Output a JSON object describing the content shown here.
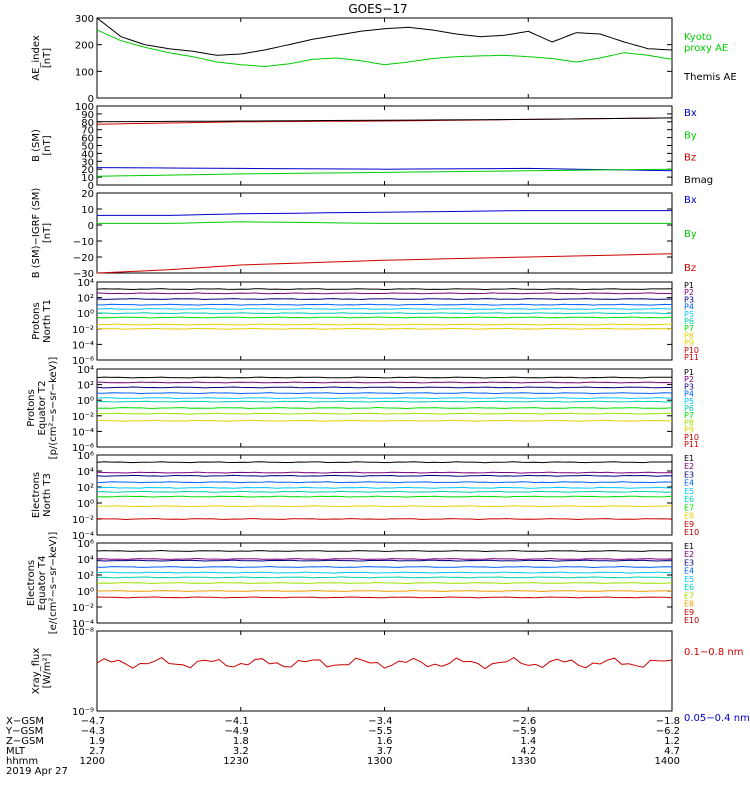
{
  "title": "GOES−17",
  "colors": {
    "black": "#000000",
    "green": "#00cc00",
    "blue": "#0000cc",
    "red": "#cc0000",
    "navy": "#000080",
    "purple": "#800080",
    "indigo": "#3a00c0",
    "royal": "#0060ff",
    "cyan": "#00c8ff",
    "teal": "#00d0b0",
    "lime": "#00e000",
    "yellowgreen": "#a0e000",
    "gold": "#e8d000",
    "orange": "#f0a000",
    "darkred": "#b00000"
  },
  "chart_data": [
    {
      "type": "line",
      "ylabel": "AE_index\n[nT]",
      "ylim": [
        0,
        300
      ],
      "yticks": [
        "0",
        "100",
        "200",
        "300"
      ],
      "x": [
        0,
        5,
        10,
        15,
        20,
        25,
        30,
        35,
        40,
        45,
        50,
        55,
        60,
        65,
        70,
        75,
        80,
        85,
        90,
        95,
        100,
        105,
        110,
        115,
        120
      ],
      "series": [
        {
          "name": "Kyoto\nproxy AE",
          "color": "green",
          "values": [
            255,
            215,
            190,
            170,
            155,
            135,
            125,
            118,
            128,
            145,
            150,
            140,
            125,
            135,
            148,
            155,
            158,
            160,
            155,
            148,
            135,
            150,
            170,
            160,
            145
          ]
        },
        {
          "name": "Themis AE",
          "color": "black",
          "values": [
            300,
            230,
            200,
            185,
            175,
            160,
            165,
            180,
            200,
            220,
            235,
            250,
            260,
            265,
            255,
            240,
            230,
            235,
            250,
            210,
            245,
            240,
            210,
            185,
            180
          ]
        }
      ]
    },
    {
      "type": "line",
      "ylabel": "B (SM)\n[nT]",
      "ylim": [
        0,
        100
      ],
      "yticks": [
        "0",
        "10",
        "20",
        "30",
        "40",
        "50",
        "60",
        "70",
        "80",
        "90",
        "100"
      ],
      "x": [
        0,
        30,
        60,
        90,
        120
      ],
      "series": [
        {
          "name": "Bx",
          "color": "blue",
          "values": [
            22,
            21,
            20,
            21,
            18
          ]
        },
        {
          "name": "By",
          "color": "green",
          "values": [
            11,
            14,
            16,
            18,
            20
          ]
        },
        {
          "name": "Bz",
          "color": "red",
          "values": [
            77,
            80,
            81,
            83,
            85
          ]
        },
        {
          "name": "Bmag",
          "color": "black",
          "values": [
            80,
            81,
            82,
            83,
            85
          ]
        }
      ]
    },
    {
      "type": "line",
      "ylabel": "B (SM)−IGRF (SM)\n[nT]",
      "ylim": [
        -30,
        20
      ],
      "yticks": [
        "−30",
        "−20",
        "−10",
        "0",
        "10",
        "20"
      ],
      "x": [
        0,
        15,
        30,
        60,
        90,
        120
      ],
      "series": [
        {
          "name": "Bx",
          "color": "blue",
          "values": [
            6,
            6,
            7,
            8,
            9,
            9
          ]
        },
        {
          "name": "By",
          "color": "green",
          "values": [
            1,
            1,
            2,
            1,
            1,
            1
          ]
        },
        {
          "name": "Bz",
          "color": "red",
          "values": [
            -30,
            -28,
            -25,
            -22,
            -20,
            -18
          ]
        }
      ]
    },
    {
      "type": "line",
      "ylabel": "Protons\nNorth T1",
      "ylog": true,
      "ylim": [
        -7,
        4
      ],
      "yticks": [
        "10⁻⁶",
        "10⁻⁴",
        "10⁻²",
        "10⁰",
        "10²",
        "10⁴"
      ],
      "series": [
        {
          "name": "P1",
          "color": "black",
          "level": 3.0
        },
        {
          "name": "P2",
          "color": "purple",
          "level": 2.4
        },
        {
          "name": "P3",
          "color": "navy",
          "level": 1.6
        },
        {
          "name": "P4",
          "color": "royal",
          "level": 0.8
        },
        {
          "name": "P5",
          "color": "cyan",
          "level": 0.2
        },
        {
          "name": "P6",
          "color": "teal",
          "level": -0.4
        },
        {
          "name": "P7",
          "color": "lime",
          "level": -1.0
        },
        {
          "name": "P8",
          "color": "gold",
          "level": -2.0
        },
        {
          "name": "P9",
          "color": "gold",
          "level": -2.6
        },
        {
          "name": "P10",
          "color": "red",
          "level": -7.0
        },
        {
          "name": "P11",
          "color": "red",
          "level": -7.0
        }
      ]
    },
    {
      "type": "line",
      "ylabel": "Protons\nEquator T2\n[p/(cm²−s−sr−keV)]",
      "ylog": true,
      "ylim": [
        -7,
        4
      ],
      "yticks": [
        "10⁻⁶",
        "10⁻⁴",
        "10⁻²",
        "10⁰",
        "10²",
        "10⁴"
      ],
      "series": [
        {
          "name": "P1",
          "color": "black",
          "level": 2.8
        },
        {
          "name": "P2",
          "color": "purple",
          "level": 2.1
        },
        {
          "name": "P3",
          "color": "navy",
          "level": 1.4
        },
        {
          "name": "P4",
          "color": "royal",
          "level": 0.6
        },
        {
          "name": "P5",
          "color": "cyan",
          "level": -0.1
        },
        {
          "name": "P6",
          "color": "teal",
          "level": -0.6
        },
        {
          "name": "P7",
          "color": "lime",
          "level": -1.5
        },
        {
          "name": "P8",
          "color": "yellowgreen",
          "level": -2.3
        },
        {
          "name": "P9",
          "color": "gold",
          "level": -3.3
        },
        {
          "name": "P10",
          "color": "red",
          "level": -7.0
        },
        {
          "name": "P11",
          "color": "red",
          "level": -7.0
        }
      ]
    },
    {
      "type": "line",
      "ylabel": "Electrons\nNorth T3",
      "ylog": true,
      "ylim": [
        -4,
        6
      ],
      "yticks": [
        "10⁻⁴",
        "10⁻²",
        "10⁰",
        "10²",
        "10⁴",
        "10⁶"
      ],
      "series": [
        {
          "name": "E1",
          "color": "black",
          "level": 5.1
        },
        {
          "name": "E2",
          "color": "purple",
          "level": 3.8
        },
        {
          "name": "E3",
          "color": "navy",
          "level": 3.4
        },
        {
          "name": "E4",
          "color": "royal",
          "level": 2.6
        },
        {
          "name": "E5",
          "color": "cyan",
          "level": 1.9
        },
        {
          "name": "E6",
          "color": "teal",
          "level": 1.4
        },
        {
          "name": "E7",
          "color": "lime",
          "level": 0.8
        },
        {
          "name": "E8",
          "color": "gold",
          "level": -0.4
        },
        {
          "name": "E9",
          "color": "red",
          "level": -2.0
        },
        {
          "name": "E10",
          "color": "darkred",
          "level": -4.0
        }
      ]
    },
    {
      "type": "line",
      "ylabel": "Electrons\nEquator T4\n[e/(cm²−s−sr−keV)]",
      "ylog": true,
      "ylim": [
        -4,
        6
      ],
      "yticks": [
        "10⁻⁴",
        "10⁻²",
        "10⁰",
        "10²",
        "10⁴",
        "10⁶"
      ],
      "series": [
        {
          "name": "E1",
          "color": "black",
          "level": 5.0
        },
        {
          "name": "E2",
          "color": "purple",
          "level": 4.0
        },
        {
          "name": "E3",
          "color": "navy",
          "level": 3.8
        },
        {
          "name": "E4",
          "color": "royal",
          "level": 3.0
        },
        {
          "name": "E5",
          "color": "cyan",
          "level": 2.3
        },
        {
          "name": "E6",
          "color": "teal",
          "level": 1.7
        },
        {
          "name": "E7",
          "color": "yellowgreen",
          "level": 1.0
        },
        {
          "name": "E8",
          "color": "orange",
          "level": 0.0
        },
        {
          "name": "E9",
          "color": "red",
          "level": -0.8
        },
        {
          "name": "E10",
          "color": "darkred",
          "level": -4.0
        }
      ]
    },
    {
      "type": "line",
      "ylabel": "Xray_flux\n[W/m²]",
      "ylog": true,
      "ylim": [
        -9,
        -8
      ],
      "yticks": [
        "10⁻⁹",
        "10⁻⁸"
      ],
      "series": [
        {
          "name": "0.1−0.8 nm",
          "color": "red",
          "level": -8.4
        },
        {
          "name": "0.05−0.4 nm",
          "color": "blue",
          "level": -9.0
        }
      ]
    }
  ],
  "xaxis": {
    "row_labels": [
      "X−GSM",
      "Y−GSM",
      "Z−GSM",
      "MLT",
      "hhmm",
      "2019 Apr 27"
    ],
    "columns": [
      {
        "values": [
          "−4.7",
          "−4.3",
          "1.9",
          "2.7",
          "1200"
        ]
      },
      {
        "values": [
          "−4.1",
          "−4.9",
          "1.8",
          "3.2",
          "1230"
        ]
      },
      {
        "values": [
          "−3.4",
          "−5.5",
          "1.6",
          "3.7",
          "1300"
        ]
      },
      {
        "values": [
          "−2.6",
          "−5.9",
          "1.4",
          "4.2",
          "1330"
        ]
      },
      {
        "values": [
          "−1.8",
          "−6.2",
          "1.2",
          "4.7",
          "1400"
        ]
      }
    ]
  }
}
